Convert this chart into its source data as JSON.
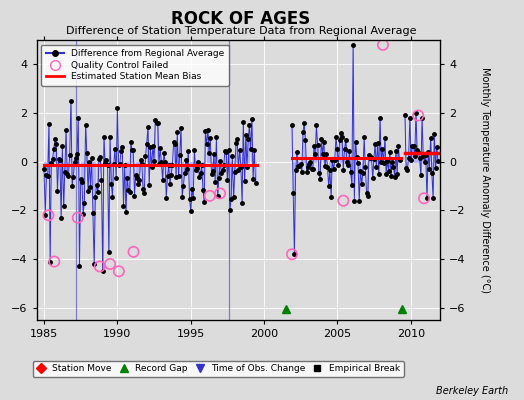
{
  "title": "ROCK OF AGES",
  "subtitle": "Difference of Station Temperature Data from Regional Average",
  "ylabel": "Monthly Temperature Anomaly Difference (°C)",
  "credit": "Berkeley Earth",
  "xlim": [
    1984.5,
    2012.0
  ],
  "ylim": [
    -6.5,
    5.0
  ],
  "yticks": [
    -6,
    -4,
    -2,
    0,
    2,
    4
  ],
  "xticks": [
    1985,
    1990,
    1995,
    2000,
    2005,
    2010
  ],
  "bg_color": "#dcdcdc",
  "plot_bg_color": "#dcdcdc",
  "segment1_start": 1985.0,
  "segment1_end": 1999.5,
  "segment1_bias": -0.12,
  "segment2_start": 2001.9,
  "segment2_end": 2009.3,
  "segment2_bias": 0.15,
  "segment3_start": 2009.6,
  "segment3_end": 2011.9,
  "segment3_bias": 0.35,
  "time_of_obs_changes": [
    1987.2,
    1997.6
  ],
  "record_gaps": [
    2001.5,
    2009.4
  ],
  "qc_fail_t": [
    1985.3,
    1985.7,
    1987.3,
    1988.8,
    1989.5,
    1990.1,
    1991.1,
    1996.3,
    1997.0,
    2001.9,
    2005.4,
    2008.1,
    2010.5,
    2010.9
  ],
  "qc_fail_v": [
    -2.2,
    -4.1,
    -2.3,
    -4.3,
    -4.2,
    -4.5,
    -3.7,
    -1.4,
    -1.3,
    -3.8,
    -1.6,
    4.8,
    1.9,
    -1.5
  ]
}
